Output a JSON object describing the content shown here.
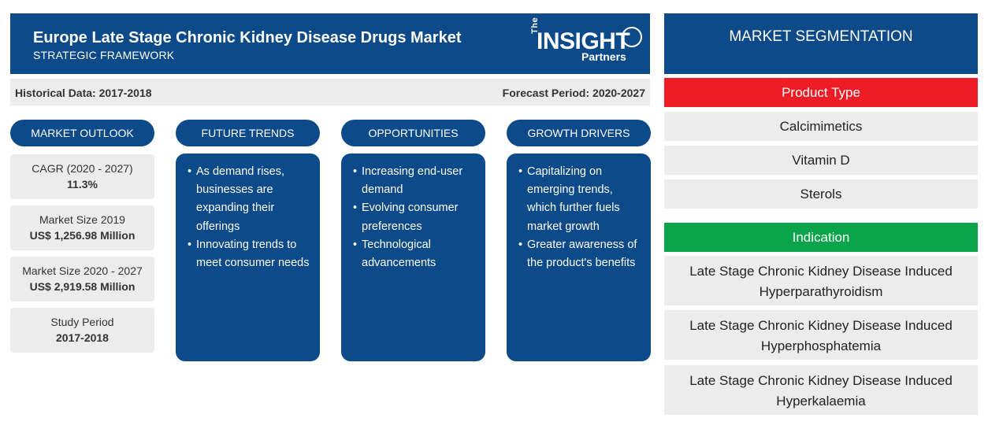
{
  "header": {
    "title": "Europe Late Stage Chronic Kidney Disease Drugs Market",
    "subtitle": "STRATEGIC FRAMEWORK",
    "logo": {
      "the": "The",
      "insight": "INSIGHT",
      "partners": "Partners"
    }
  },
  "databar": {
    "historical": "Historical Data: 2017-2018",
    "forecast": "Forecast Period: 2020-2027"
  },
  "columns": {
    "outlook": "MARKET OUTLOOK",
    "trends": "FUTURE TRENDS",
    "opportunities": "OPPORTUNITIES",
    "drivers": "GROWTH DRIVERS"
  },
  "outlook": [
    {
      "label": "CAGR (2020 - 2027)",
      "value": "11.3%"
    },
    {
      "label": "Market Size 2019",
      "value": "US$ 1,256.98 Million"
    },
    {
      "label": "Market Size 2020 - 2027",
      "value": "US$ 2,919.58 Million"
    },
    {
      "label": "Study Period",
      "value": "2017-2018"
    }
  ],
  "trends": [
    "As demand rises, businesses are expanding their offerings",
    "Innovating trends to meet consumer needs"
  ],
  "opportunities": [
    "Increasing end-user demand",
    "Evolving consumer preferences",
    "Technological advancements"
  ],
  "drivers": [
    "Capitalizing on emerging trends, which further fuels market growth",
    "Greater awareness of the product's benefits"
  ],
  "segmentation": {
    "title": "MARKET SEGMENTATION",
    "categories": [
      {
        "name": "Product Type",
        "color": "#ee1c25",
        "items": [
          "Calcimimetics",
          "Vitamin D",
          "Sterols"
        ]
      },
      {
        "name": "Indication",
        "color": "#0aa54a",
        "items": [
          "Late Stage Chronic Kidney Disease Induced Hyperparathyroidism",
          "Late Stage Chronic Kidney Disease Induced Hyperphosphatemia",
          "Late Stage Chronic Kidney Disease Induced Hyperkalaemia"
        ]
      }
    ]
  },
  "colors": {
    "navy": "#0d4a8a",
    "panel_gray": "#ececec"
  }
}
